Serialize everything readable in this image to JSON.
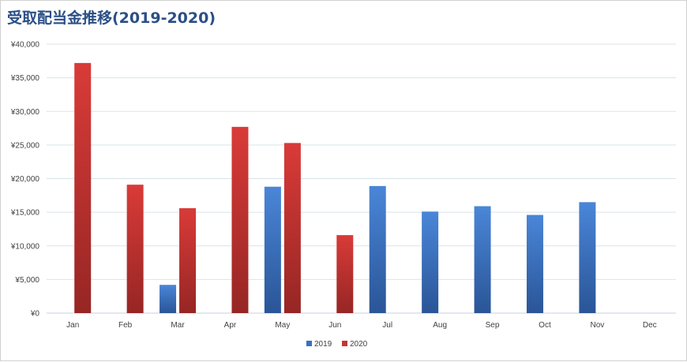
{
  "chart_data": {
    "type": "bar",
    "title": "受取配当金推移(2019-2020)",
    "xlabel": "",
    "ylabel": "",
    "categories": [
      "Jan",
      "Feb",
      "Mar",
      "Apr",
      "May",
      "Jun",
      "Jul",
      "Aug",
      "Sep",
      "Oct",
      "Nov",
      "Dec"
    ],
    "series": [
      {
        "name": "2019",
        "color": "#3a6fc0",
        "values": [
          null,
          null,
          4200,
          null,
          18800,
          null,
          18900,
          15100,
          15900,
          14600,
          16500,
          null
        ]
      },
      {
        "name": "2020",
        "color": "#c53533",
        "values": [
          37200,
          19100,
          15600,
          27700,
          25300,
          11600,
          null,
          null,
          null,
          null,
          null,
          null
        ]
      }
    ],
    "ylim": [
      0,
      40000
    ],
    "yticks": [
      0,
      5000,
      10000,
      15000,
      20000,
      25000,
      30000,
      35000,
      40000
    ],
    "ytick_labels": [
      "¥0",
      "¥5,000",
      "¥10,000",
      "¥15,000",
      "¥20,000",
      "¥25,000",
      "¥30,000",
      "¥35,000",
      "¥40,000"
    ],
    "grid": true,
    "legend_position": "bottom"
  }
}
